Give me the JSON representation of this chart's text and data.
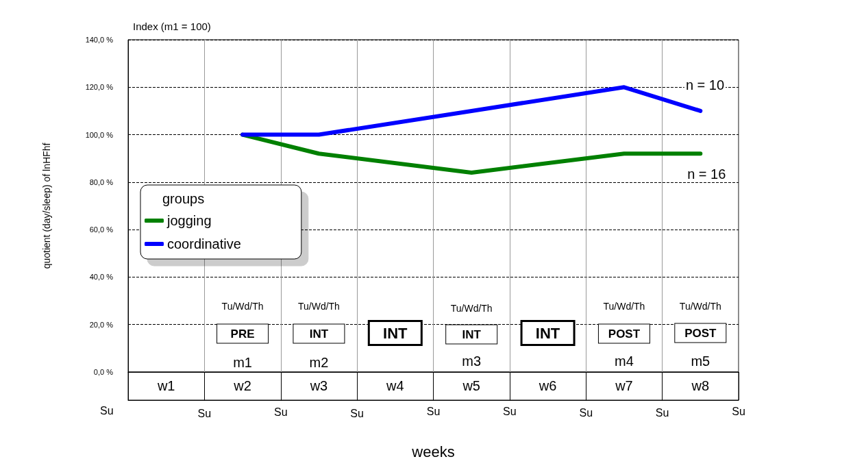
{
  "chart_data": {
    "type": "line",
    "subtitle": "Index (m1 = 100)",
    "xlabel": "weeks",
    "ylabel": "quotient (day/sleep) of lnHFhf",
    "legend_title": "groups",
    "legend": "left",
    "grid": true,
    "line_style": "solid",
    "categories": [
      "w1",
      "w2",
      "w3",
      "w4",
      "w5",
      "w6",
      "w7",
      "w8"
    ],
    "series": [
      {
        "name": "jogging",
        "color": "#008000",
        "x": [
          "w2",
          "w3",
          "w5",
          "w7",
          "w8"
        ],
        "values": [
          100,
          92,
          84,
          92,
          92
        ]
      },
      {
        "name": "coordinative",
        "color": "#0000ff",
        "x": [
          "w2",
          "w3",
          "w5",
          "w7",
          "w8"
        ],
        "values": [
          100,
          100,
          110,
          120,
          110
        ]
      }
    ],
    "ylim": [
      0,
      140
    ],
    "yticks": [
      {
        "value": 0,
        "label": "0,0 %"
      },
      {
        "value": 20,
        "label": "20,0 %"
      },
      {
        "value": 40,
        "label": "40,0 %"
      },
      {
        "value": 60,
        "label": "60,0 %"
      },
      {
        "value": 80,
        "label": "80,0 %"
      },
      {
        "value": 100,
        "label": "100,0 %"
      },
      {
        "value": 120,
        "label": "120,0 %"
      },
      {
        "value": 140,
        "label": "140,0 %"
      }
    ],
    "annotations": [
      "n = 10",
      "n = 16",
      "Tu/Wd/Th",
      "Tu/Wd/Th",
      "Tu/Wd/Th",
      "Tu/Wd/Th",
      "Tu/Wd/Th",
      "PRE",
      "INT",
      "INT",
      "INT",
      "INT",
      "POST",
      "POST",
      "m1",
      "m2",
      "m3",
      "m4",
      "m5",
      "Su",
      "Su",
      "Su",
      "Su",
      "Su",
      "Su",
      "Su",
      "Su",
      "Su"
    ]
  }
}
